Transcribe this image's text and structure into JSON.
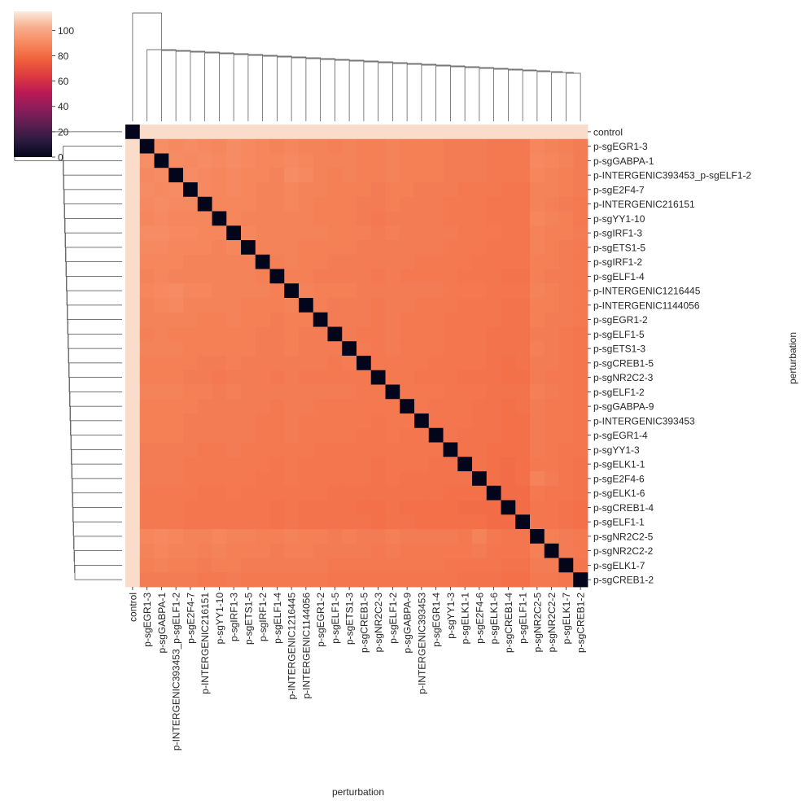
{
  "chart_data": {
    "type": "heatmap",
    "subtype": "clustermap",
    "title": "",
    "xlabel": "perturbation",
    "ylabel": "perturbation",
    "labels": [
      "control",
      "p-sgEGR1-3",
      "p-sgGABPA-1",
      "p-INTERGENIC393453_p-sgELF1-2",
      "p-sgE2F4-7",
      "p-INTERGENIC216151",
      "p-sgYY1-10",
      "p-sgIRF1-3",
      "p-sgETS1-5",
      "p-sgIRF1-2",
      "p-sgELF1-4",
      "p-INTERGENIC1216445",
      "p-INTERGENIC1144056",
      "p-sgEGR1-2",
      "p-sgELF1-5",
      "p-sgETS1-3",
      "p-sgCREB1-5",
      "p-sgNR2C2-3",
      "p-sgELF1-2",
      "p-sgGABPA-9",
      "p-INTERGENIC393453",
      "p-sgEGR1-4",
      "p-sgYY1-3",
      "p-sgELK1-1",
      "p-sgE2F4-6",
      "p-sgELK1-6",
      "p-sgCREB1-4",
      "p-sgELF1-1",
      "p-sgNR2C2-5",
      "p-sgNR2C2-2",
      "p-sgELK1-7",
      "p-sgCREB1-2"
    ],
    "colorbar": {
      "range": [
        0,
        115
      ],
      "ticks": [
        0,
        20,
        40,
        60,
        80,
        100
      ],
      "colormap": "rocket",
      "stops": [
        "#03051a",
        "#2b1a3f",
        "#5b1e51",
        "#8c1d5a",
        "#bb1a54",
        "#dd3a40",
        "#f0603b",
        "#f6875d",
        "#f8ad8c",
        "#faebdd"
      ]
    },
    "diagonal_value": 0,
    "control_distance": 112,
    "values": [
      [
        0,
        112,
        112,
        112,
        112,
        112,
        112,
        112,
        112,
        112,
        112,
        112,
        112,
        112,
        112,
        112,
        112,
        112,
        112,
        112,
        112,
        112,
        112,
        112,
        112,
        112,
        112,
        112,
        112,
        112,
        112,
        112
      ],
      [
        112,
        0,
        92,
        90,
        91,
        90,
        89,
        91,
        90,
        89,
        88,
        89,
        88,
        88,
        87,
        88,
        87,
        87,
        88,
        87,
        87,
        87,
        86,
        86,
        86,
        85,
        85,
        85,
        89,
        88,
        87,
        86
      ],
      [
        112,
        92,
        0,
        91,
        90,
        91,
        90,
        91,
        90,
        89,
        89,
        90,
        89,
        88,
        88,
        88,
        87,
        87,
        88,
        87,
        87,
        87,
        86,
        86,
        86,
        85,
        85,
        85,
        90,
        89,
        88,
        86
      ],
      [
        112,
        90,
        91,
        0,
        91,
        90,
        89,
        90,
        89,
        89,
        88,
        91,
        90,
        88,
        87,
        88,
        87,
        87,
        88,
        87,
        87,
        87,
        86,
        86,
        86,
        85,
        85,
        85,
        89,
        88,
        87,
        86
      ],
      [
        112,
        91,
        90,
        91,
        0,
        90,
        89,
        90,
        89,
        88,
        88,
        89,
        88,
        88,
        87,
        87,
        87,
        86,
        87,
        87,
        86,
        86,
        86,
        85,
        85,
        85,
        84,
        84,
        88,
        88,
        87,
        86
      ],
      [
        112,
        90,
        91,
        90,
        90,
        0,
        89,
        89,
        89,
        88,
        88,
        89,
        88,
        87,
        87,
        87,
        86,
        86,
        87,
        86,
        86,
        86,
        85,
        85,
        85,
        84,
        84,
        84,
        88,
        87,
        86,
        85
      ],
      [
        112,
        89,
        90,
        89,
        89,
        89,
        0,
        89,
        88,
        88,
        88,
        88,
        88,
        87,
        87,
        87,
        86,
        85,
        86,
        86,
        86,
        86,
        85,
        85,
        85,
        84,
        84,
        84,
        89,
        88,
        87,
        85
      ],
      [
        112,
        91,
        91,
        90,
        90,
        89,
        89,
        0,
        89,
        88,
        88,
        88,
        88,
        88,
        87,
        87,
        87,
        86,
        87,
        86,
        86,
        86,
        86,
        85,
        85,
        85,
        84,
        84,
        88,
        87,
        87,
        86
      ],
      [
        112,
        90,
        90,
        89,
        89,
        89,
        88,
        89,
        0,
        88,
        88,
        88,
        87,
        87,
        87,
        87,
        86,
        86,
        86,
        86,
        86,
        86,
        85,
        85,
        85,
        84,
        84,
        84,
        88,
        87,
        86,
        85
      ],
      [
        112,
        89,
        89,
        89,
        88,
        88,
        88,
        88,
        88,
        0,
        87,
        88,
        87,
        87,
        86,
        86,
        86,
        86,
        86,
        86,
        85,
        85,
        85,
        85,
        84,
        84,
        84,
        84,
        87,
        87,
        86,
        85
      ],
      [
        112,
        88,
        89,
        88,
        88,
        88,
        88,
        88,
        88,
        87,
        0,
        87,
        87,
        86,
        86,
        86,
        86,
        85,
        86,
        85,
        85,
        85,
        85,
        84,
        84,
        84,
        83,
        83,
        87,
        86,
        86,
        85
      ],
      [
        112,
        89,
        90,
        91,
        89,
        89,
        88,
        88,
        88,
        88,
        87,
        0,
        88,
        87,
        87,
        87,
        86,
        86,
        86,
        86,
        86,
        86,
        85,
        85,
        85,
        84,
        84,
        84,
        88,
        87,
        86,
        85
      ],
      [
        112,
        88,
        89,
        90,
        88,
        88,
        88,
        88,
        87,
        87,
        87,
        88,
        0,
        87,
        86,
        86,
        86,
        85,
        86,
        86,
        85,
        85,
        85,
        84,
        84,
        84,
        83,
        83,
        87,
        87,
        86,
        85
      ],
      [
        112,
        88,
        88,
        88,
        88,
        87,
        87,
        88,
        87,
        87,
        86,
        87,
        87,
        0,
        86,
        86,
        86,
        85,
        86,
        85,
        85,
        85,
        84,
        84,
        84,
        84,
        83,
        83,
        87,
        86,
        86,
        85
      ],
      [
        112,
        87,
        88,
        87,
        87,
        87,
        87,
        87,
        87,
        86,
        86,
        87,
        86,
        86,
        0,
        86,
        85,
        85,
        86,
        85,
        85,
        85,
        84,
        84,
        84,
        83,
        83,
        83,
        86,
        86,
        85,
        84
      ],
      [
        112,
        88,
        88,
        88,
        87,
        87,
        87,
        87,
        87,
        86,
        86,
        87,
        86,
        86,
        86,
        0,
        86,
        85,
        86,
        85,
        85,
        85,
        84,
        84,
        84,
        83,
        83,
        83,
        87,
        86,
        85,
        84
      ],
      [
        112,
        87,
        87,
        87,
        87,
        86,
        86,
        87,
        86,
        86,
        86,
        86,
        86,
        86,
        85,
        86,
        0,
        85,
        85,
        85,
        85,
        84,
        84,
        84,
        84,
        83,
        82,
        83,
        86,
        86,
        85,
        84
      ],
      [
        112,
        87,
        87,
        87,
        86,
        86,
        85,
        86,
        86,
        86,
        85,
        86,
        85,
        85,
        85,
        85,
        85,
        0,
        85,
        85,
        84,
        84,
        84,
        83,
        83,
        83,
        82,
        82,
        86,
        85,
        85,
        84
      ],
      [
        112,
        88,
        88,
        88,
        87,
        87,
        86,
        87,
        86,
        86,
        86,
        86,
        86,
        86,
        86,
        86,
        85,
        85,
        0,
        85,
        85,
        85,
        84,
        84,
        84,
        83,
        83,
        83,
        87,
        86,
        85,
        84
      ],
      [
        112,
        87,
        87,
        87,
        87,
        86,
        86,
        86,
        86,
        86,
        85,
        86,
        86,
        85,
        85,
        85,
        85,
        85,
        85,
        0,
        85,
        84,
        84,
        84,
        83,
        83,
        82,
        83,
        86,
        85,
        85,
        84
      ],
      [
        112,
        87,
        87,
        87,
        86,
        86,
        86,
        86,
        86,
        85,
        85,
        86,
        85,
        85,
        85,
        85,
        85,
        84,
        85,
        85,
        0,
        84,
        84,
        84,
        83,
        83,
        82,
        82,
        86,
        85,
        85,
        84
      ],
      [
        112,
        87,
        87,
        87,
        86,
        86,
        86,
        86,
        86,
        85,
        85,
        86,
        85,
        85,
        85,
        85,
        84,
        84,
        85,
        84,
        84,
        0,
        84,
        83,
        83,
        83,
        82,
        82,
        86,
        85,
        85,
        84
      ],
      [
        112,
        86,
        86,
        86,
        86,
        85,
        85,
        86,
        85,
        85,
        85,
        85,
        85,
        84,
        84,
        84,
        84,
        84,
        84,
        84,
        84,
        84,
        0,
        83,
        83,
        82,
        82,
        82,
        86,
        85,
        84,
        84
      ],
      [
        112,
        86,
        86,
        86,
        85,
        85,
        85,
        85,
        85,
        85,
        84,
        85,
        84,
        84,
        84,
        84,
        84,
        83,
        84,
        84,
        84,
        83,
        83,
        0,
        83,
        82,
        81,
        82,
        85,
        85,
        84,
        83
      ],
      [
        112,
        86,
        86,
        86,
        85,
        85,
        85,
        85,
        85,
        84,
        84,
        85,
        84,
        84,
        84,
        84,
        84,
        83,
        84,
        83,
        83,
        83,
        83,
        83,
        0,
        82,
        81,
        82,
        88,
        86,
        84,
        83
      ],
      [
        112,
        85,
        85,
        85,
        85,
        84,
        84,
        85,
        84,
        84,
        84,
        84,
        84,
        84,
        83,
        83,
        83,
        83,
        83,
        83,
        83,
        83,
        82,
        82,
        82,
        0,
        81,
        81,
        85,
        84,
        84,
        83
      ],
      [
        112,
        85,
        85,
        85,
        84,
        84,
        84,
        84,
        84,
        84,
        83,
        84,
        83,
        83,
        83,
        83,
        82,
        82,
        83,
        82,
        82,
        82,
        82,
        81,
        81,
        81,
        0,
        81,
        84,
        84,
        83,
        82
      ],
      [
        112,
        85,
        85,
        85,
        84,
        84,
        84,
        84,
        84,
        84,
        83,
        84,
        83,
        83,
        83,
        83,
        83,
        82,
        83,
        83,
        82,
        82,
        82,
        82,
        82,
        81,
        81,
        0,
        84,
        84,
        83,
        82
      ],
      [
        112,
        89,
        90,
        89,
        88,
        88,
        89,
        88,
        88,
        87,
        87,
        88,
        87,
        87,
        86,
        87,
        86,
        86,
        87,
        86,
        86,
        86,
        86,
        85,
        88,
        85,
        84,
        84,
        0,
        87,
        86,
        85
      ],
      [
        112,
        88,
        89,
        88,
        88,
        87,
        88,
        87,
        87,
        87,
        86,
        87,
        87,
        86,
        86,
        86,
        86,
        85,
        86,
        85,
        85,
        85,
        85,
        85,
        86,
        84,
        84,
        84,
        87,
        0,
        86,
        85
      ],
      [
        112,
        87,
        88,
        87,
        87,
        86,
        87,
        87,
        86,
        86,
        86,
        86,
        86,
        86,
        85,
        85,
        85,
        85,
        85,
        85,
        85,
        85,
        84,
        84,
        84,
        84,
        83,
        83,
        86,
        86,
        0,
        84
      ],
      [
        112,
        86,
        86,
        86,
        86,
        85,
        85,
        86,
        85,
        85,
        85,
        85,
        85,
        85,
        84,
        84,
        84,
        84,
        84,
        84,
        84,
        84,
        84,
        83,
        83,
        83,
        82,
        82,
        85,
        85,
        84,
        0
      ]
    ]
  }
}
